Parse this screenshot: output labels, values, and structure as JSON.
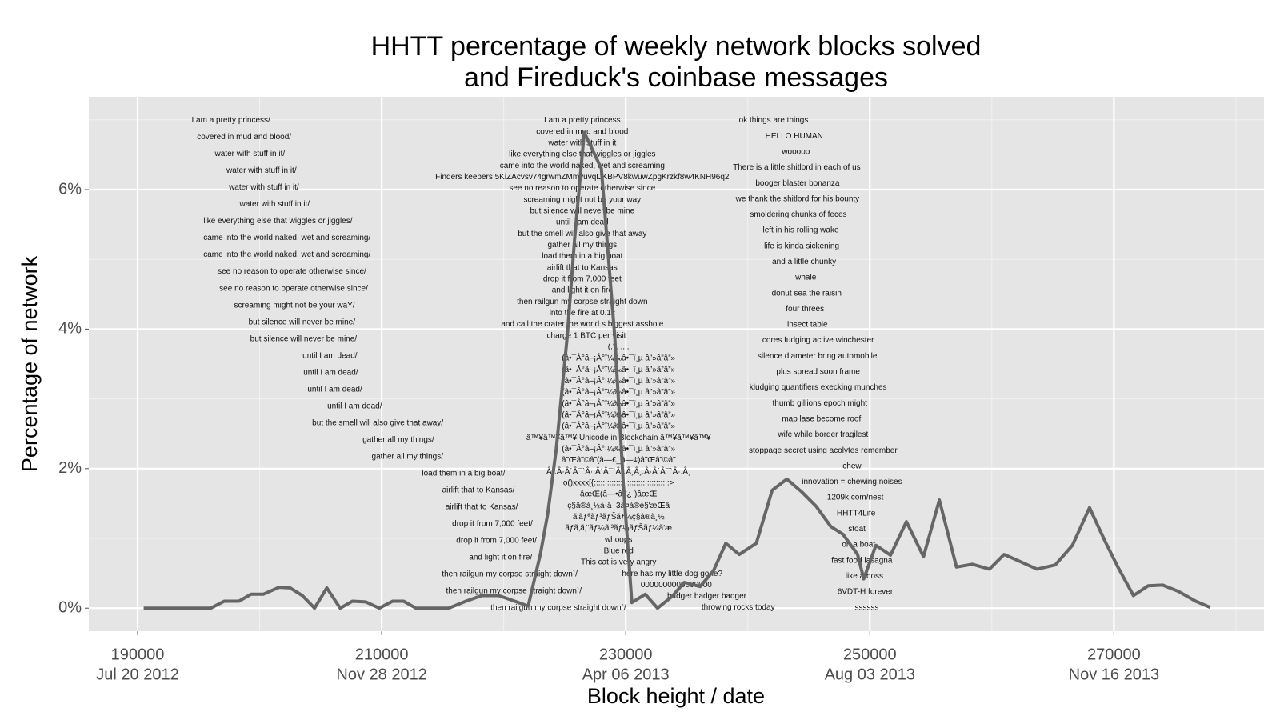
{
  "chart_data": {
    "type": "line",
    "title": [
      "HHTT percentage of weekly network blocks solved",
      "and Fireduck's coinbase messages"
    ],
    "x_label": "Block height / date",
    "y_label": "Percentage of network",
    "color": "#666666",
    "x": [
      190500,
      196000,
      197100,
      198300,
      199300,
      200300,
      201600,
      202500,
      203500,
      204500,
      205500,
      206600,
      207600,
      208700,
      209800,
      210900,
      211800,
      212800,
      215500,
      216900,
      218200,
      219600,
      220900,
      222000,
      223000,
      223600,
      224300,
      225200,
      225800,
      226600,
      228000,
      229100,
      229800,
      230500,
      231600,
      232600,
      233800,
      234800,
      236100,
      237200,
      238200,
      239300,
      240700,
      242000,
      243200,
      244400,
      245600,
      246800,
      247800,
      249000,
      249500,
      250500,
      251700,
      253000,
      254400,
      255700,
      257100,
      258400,
      259800,
      261000,
      262300,
      263700,
      265200,
      266600,
      268000,
      269300,
      270300,
      271600,
      272800,
      274000,
      275300,
      276700,
      277900
    ],
    "values": [
      0,
      0,
      0.1,
      0.1,
      0.2,
      0.2,
      0.3,
      0.29,
      0.18,
      0,
      0.29,
      0,
      0.1,
      0.09,
      0,
      0.1,
      0.1,
      0,
      0,
      0.1,
      0.18,
      0.18,
      0.1,
      0.03,
      0.77,
      1.35,
      2.27,
      3.89,
      5.27,
      6.82,
      6.3,
      3.88,
      1.8,
      0.08,
      0.2,
      0,
      0.17,
      0.37,
      0.31,
      0.54,
      0.93,
      0.77,
      0.93,
      1.69,
      1.85,
      1.67,
      1.46,
      1.17,
      1.06,
      0.77,
      0.42,
      0.9,
      0.76,
      1.24,
      0.74,
      1.55,
      0.59,
      0.63,
      0.56,
      0.77,
      0.67,
      0.56,
      0.62,
      0.9,
      1.44,
      0.95,
      0.6,
      0.18,
      0.32,
      0.33,
      0.24,
      0.1,
      0.01
    ],
    "xlim": [
      186000,
      282300
    ],
    "xticks": [
      190000,
      210000,
      230000,
      250000,
      270000
    ],
    "xtick_dates": [
      "Jul 20 2012",
      "Nov 28 2012",
      "Apr 06 2013",
      "Aug 03 2013",
      "Nov 16 2013"
    ],
    "ylim": [
      -0.33,
      7.33
    ],
    "yticks": [
      {
        "value": 0,
        "label": "0%"
      },
      {
        "value": 2,
        "label": "2%"
      },
      {
        "value": 4,
        "label": "4%"
      },
      {
        "value": 6,
        "label": "6%"
      }
    ],
    "grid": true,
    "annotations": [
      [
        "I am a pretty princess/",
        "covered in mud and blood/",
        "water with stuff in it/",
        "water with stuff in it/",
        "water with stuff in it/",
        "water with stuff in it/",
        "like everything else that wiggles or jiggles/",
        "came into the world naked, wet and screaming/",
        "came into the world naked, wet and screaming/",
        "see no reason to operate otherwise since/",
        "see no reason to operate otherwise since/",
        "screaming might not be your waY/",
        "but silence will never be mine/",
        "but silence will never be mine/",
        "until I am dead/",
        "until I am dead/",
        "until I am dead/",
        "until I am dead/",
        "but the smell will also give that away/",
        "gather all my things/",
        "gather all my things/",
        "load them in a big boat/",
        "airlift that to Kansas/",
        "airlift that to Kansas/",
        "drop it from 7,000 feet/",
        "drop it from 7,000 feet/",
        "and light it on fire/",
        "then railgun my corpse straight down`/",
        "then railgun my corpse straight down`/",
        "then railgun my corpse straight down`/"
      ],
      [
        "I am a pretty princess",
        "covered in mud and blood",
        "water with stuff in it",
        "like everything else that wiggles or jiggles",
        "came into the world naked, wet and screaming",
        "Finders keepers 5KiZAcvsv74grwmZMmyuvqDKBPV8kwuwZpgKrzkf8w4KNH96q2",
        "see no reason to operate otherwise since",
        "screaming might not be your way",
        "but silence will never be mine",
        "until I am dead",
        "but the smell will also give that away",
        "gather all my things",
        "load them in a big boat",
        "airlift that to Kansas",
        "drop it from 7,000 feet",
        "and light it on fire",
        "then railgun my corpse straight down",
        "into the fire at 0.1c",
        "and call the crater the world.s biggest asshole",
        "charge 1 BTC per visit",
        "(.°. ....",
        "(â•¯Â°â–¡Â°ï¼‰â•¯ï¸µ â”»â”â”»",
        "(â•¯Â°â–¡Â°ï¼‰â•¯ï¸µ â”»â”â”»",
        "(â•¯Â°â–¡Â°ï¼‰â•¯ï¸µ â”»â”â”»",
        "(â•¯Â°â–¡Â°ï¼‰â•¯ï¸µ â”»â”â”»",
        "(â•¯Â°â–¡Â°ï¼‰â•¯ï¸µ â”»â”â”»",
        "(â•¯Â°â–¡Â°ï¼‰â•¯ï¸µ â”»â”â”»",
        "(â•¯Â°â–¡Â°ï¼‰â•¯ï¸µ â”»â”â”»",
        "â™¥â™¥â™¥ Unicode in Blockchain â™¥â™¥â™¥",
        "(â•¯Â°â–¡Â°ï¼‰â•¯ï¸µ â”»â”â”»",
        "â˜Œâ˜©â˜(â—£_â—¢)â˜Œâ˜©â˜",
        "Â¸.Â·Â´Â¯`Â·.Â´Â¯`Â·.Â¸Â¸.Â·Â´Â¯`Â·.Â¸",
        "o()xxxx[{::::::::::::::::::::::::::::::::::>",
        "âœŒ(â—•â€¿-)âœŒ",
        "ç§â®à¸½à-â¯3â¤à®è§'æŒâ",
        "ã'ãƒªãƒ³ãƒŠãƒ¼ç§â®à¸½",
        "ãƒã‚ã‚¨ãƒ¼ã‚³ãƒ¼ãƒŠãƒ¼ã'æ",
        "whoops",
        "Blue red",
        "This cat is very angry",
        "here has my little dog gone?",
        "0000000000000000",
        "badger badger badger",
        "throwing rocks today"
      ],
      [
        "ok things are things",
        "HELLO HUMAN",
        "wooooo",
        "There is a little shitlord in each of us",
        "booger blaster bonanza",
        "we thank the shitlord for his bounty",
        "smoldering chunks of feces",
        "left in his rolling wake",
        "life is kinda sickening",
        "and a little chunky",
        "whale",
        "donut sea the raisin",
        "four threes",
        "insect table",
        "cores fudging active winchester",
        "silence diameter bring automobile",
        "plus spread soon frame",
        "kludging quantifiers execking munches",
        "thumb gillions epoch might",
        "map lase become roof",
        "wife while border fragilest",
        "stoppage secret using acolytes remember",
        "chew",
        "innovation = chewing noises",
        "1209k.com/nest",
        "HHTT4Life",
        "stoat",
        "on a boat",
        "fast food lasagna",
        "like a boss",
        "6VDT-H forever",
        "ssssss"
      ]
    ]
  }
}
